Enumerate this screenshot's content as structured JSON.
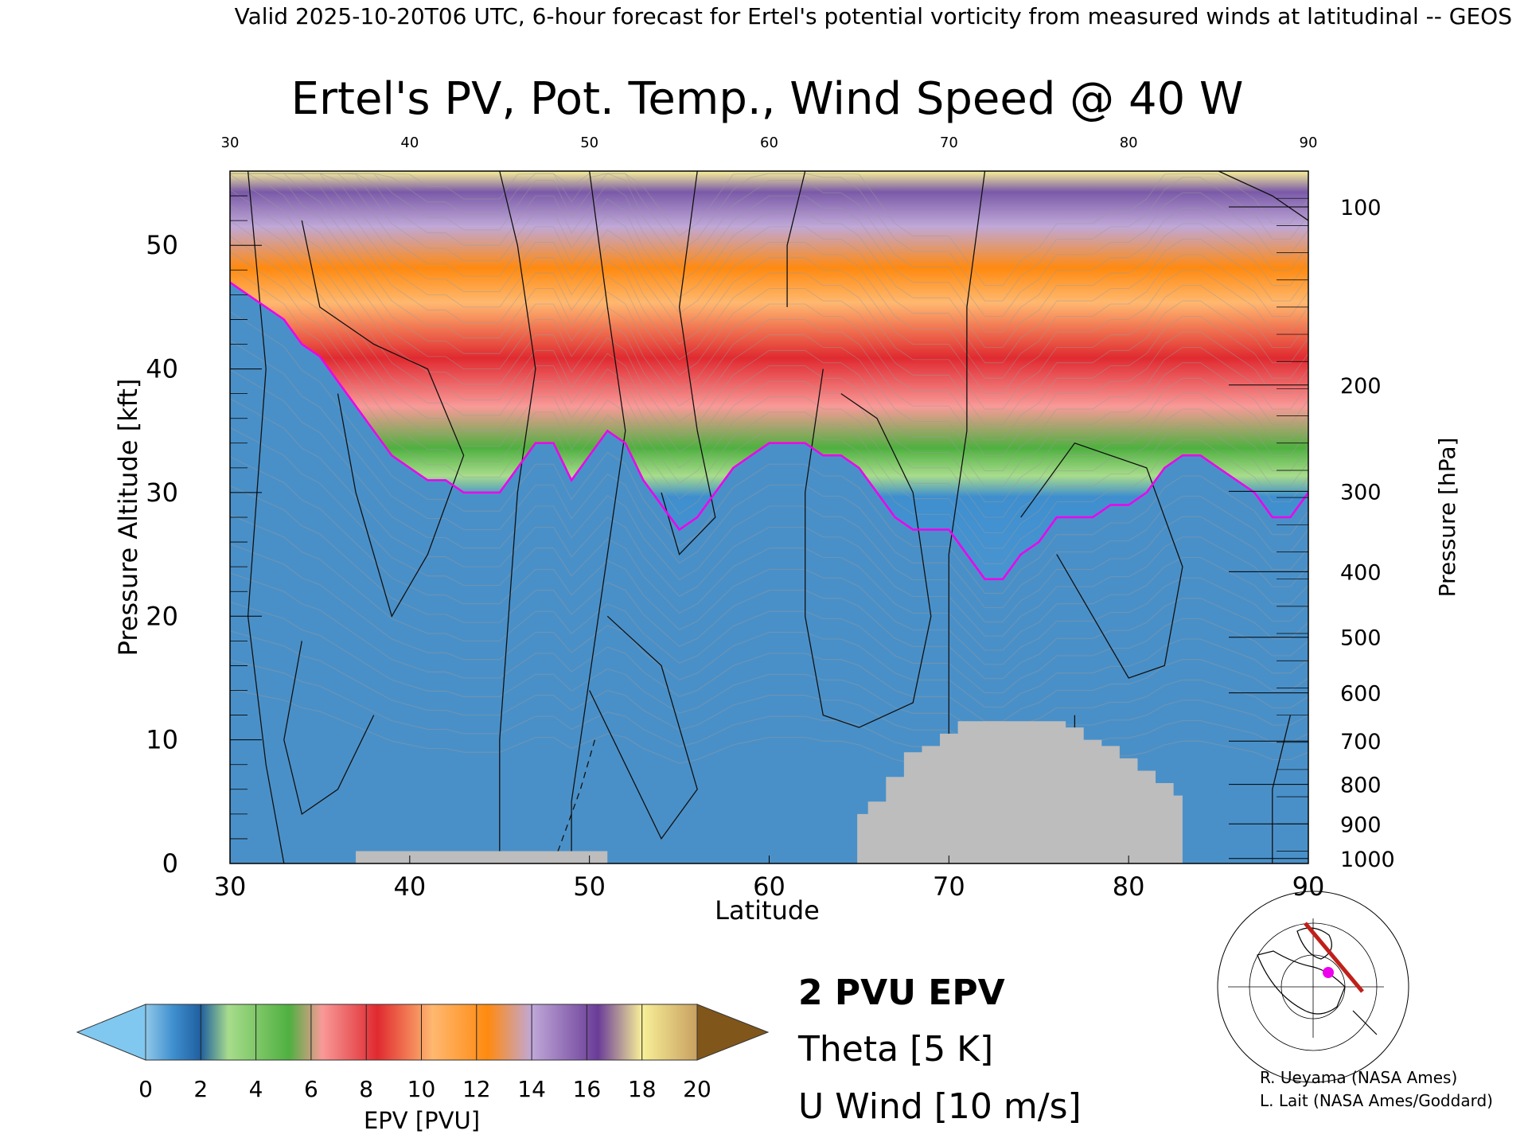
{
  "header": "Valid 2025-10-20T06 UTC, 6-hour forecast for Ertel's potential vorticity from measured winds at latitudinal -- GEOS",
  "chart_data": {
    "type": "heatmap",
    "title": "Ertel's PV, Pot. Temp., Wind Speed @ 40 W",
    "xlabel": "Latitude",
    "ylabel": "Pressure Altitude [kft]",
    "y2label": "Pressure [hPa]",
    "xlim": [
      30,
      90
    ],
    "ylim": [
      0,
      56
    ],
    "x_ticks": [
      30,
      40,
      50,
      60,
      70,
      80,
      90
    ],
    "y_ticks": [
      0,
      10,
      20,
      30,
      40,
      50
    ],
    "pressure_ticks": [
      {
        "label": "100",
        "kft": 53.1
      },
      {
        "label": "200",
        "kft": 38.7
      },
      {
        "label": "300",
        "kft": 30.1
      },
      {
        "label": "400",
        "kft": 23.6
      },
      {
        "label": "500",
        "kft": 18.3
      },
      {
        "label": "600",
        "kft": 13.8
      },
      {
        "label": "700",
        "kft": 9.9
      },
      {
        "label": "800",
        "kft": 6.4
      },
      {
        "label": "900",
        "kft": 3.2
      },
      {
        "label": "1000",
        "kft": 0.4
      }
    ],
    "tropopause_2pvu_kft": {
      "lat": [
        30,
        31,
        32,
        33,
        34,
        35,
        36,
        37,
        38,
        39,
        40,
        41,
        42,
        43,
        44,
        45,
        46,
        47,
        48,
        49,
        50,
        51,
        52,
        53,
        54,
        55,
        56,
        57,
        58,
        59,
        60,
        61,
        62,
        63,
        64,
        65,
        66,
        67,
        68,
        69,
        70,
        71,
        72,
        73,
        74,
        75,
        76,
        77,
        78,
        79,
        80,
        81,
        82,
        83,
        84,
        85,
        86,
        87,
        88,
        89,
        90
      ],
      "kft": [
        47,
        46,
        45,
        44,
        42,
        41,
        39,
        37,
        35,
        33,
        32,
        31,
        31,
        30,
        30,
        30,
        32,
        34,
        34,
        31,
        33,
        35,
        34,
        31,
        29,
        27,
        28,
        30,
        32,
        33,
        34,
        34,
        34,
        33,
        33,
        32,
        30,
        28,
        27,
        27,
        27,
        25,
        23,
        23,
        25,
        26,
        28,
        28,
        28,
        29,
        29,
        30,
        32,
        33,
        33,
        32,
        31,
        30,
        28,
        28,
        30
      ]
    },
    "terrain_kft": {
      "lat": [
        37,
        38,
        39,
        40,
        41,
        42,
        43,
        44,
        45,
        46,
        47,
        48,
        49,
        50,
        51,
        64.9,
        65.5,
        66.5,
        67.5,
        68.5,
        69.5,
        70.5,
        71.5,
        72.5,
        73.5,
        74.5,
        75.5,
        76.5,
        77.5,
        78.5,
        79.5,
        80.5,
        81.5,
        82.5,
        83.0
      ],
      "kft": [
        1,
        1,
        1,
        1,
        1,
        1,
        1,
        1,
        1,
        1,
        1,
        1,
        1,
        1,
        0,
        4,
        5,
        7,
        9,
        9.5,
        10.5,
        11.5,
        11.5,
        11.5,
        11.5,
        11.5,
        11.5,
        11.0,
        10.0,
        9.5,
        8.5,
        7.5,
        6.5,
        5.5,
        4.5
      ]
    },
    "colorbar": {
      "label": "EPV [PVU]",
      "tick_labels": [
        "0",
        "2",
        "4",
        "6",
        "8",
        "10",
        "12",
        "14",
        "16",
        "18",
        "20"
      ],
      "colors": [
        "#1f5f9f",
        "#3f8fcf",
        "#8fc8e8",
        "#a8dc8c",
        "#4fb040",
        "#f89a98",
        "#e02a30",
        "#ffb870",
        "#ff8a10",
        "#c0a8d8",
        "#6a3c98",
        "#f8f098",
        "#7a4c10"
      ]
    },
    "legend": {
      "pvu": "2 PVU EPV",
      "pvu_color": "#ee00ee",
      "theta": "Theta [5 K]",
      "theta_color": "#b0b0b0",
      "wind": "U Wind [10 m/s]"
    }
  },
  "credits": [
    "R. Ueyama (NASA Ames)",
    "L. Lait (NASA Ames/Goddard)"
  ]
}
